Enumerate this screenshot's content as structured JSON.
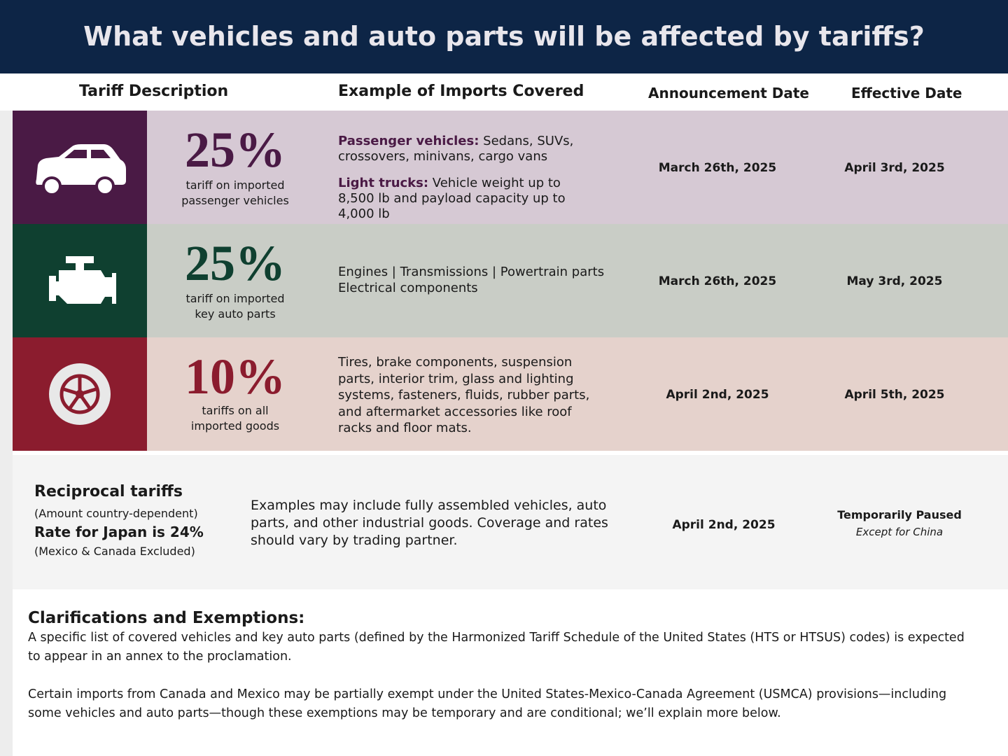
{
  "header": {
    "title": "What vehicles and auto parts will be affected by tariffs?"
  },
  "columns": [
    "Tariff Description",
    "Example of Imports Covered",
    "Announcement Date",
    "Effective Date"
  ],
  "rows": [
    {
      "rate": "25%",
      "caption": [
        "tariff on imported",
        "passenger vehicles"
      ],
      "examples": [
        {
          "label": "Passenger vehicles:",
          "text": "Sedans, SUVs, crossovers, minivans, cargo vans"
        },
        {
          "label": "Light trucks:",
          "text": "Vehicle weight up to 8,500 lb and payload capacity up to 4,000 lb"
        }
      ],
      "announcement": "March 26th, 2025",
      "effective": "April 3rd, 2025"
    },
    {
      "rate": "25%",
      "caption": [
        "tariff on imported",
        "key auto parts"
      ],
      "examples": [
        "Engines | Transmissions | Powertrain parts",
        "Electrical components"
      ],
      "announcement": "March 26th, 2025",
      "effective": "May 3rd, 2025"
    },
    {
      "rate": "10%",
      "caption": [
        "tariffs on all",
        "imported goods"
      ],
      "examples": [
        "Tires, brake components, suspension parts, interior trim, glass and lighting systems, fasteners, fluids, rubber parts, and aftermarket accessories like roof racks and floor mats."
      ],
      "announcement": "April 2nd, 2025",
      "effective": "April 5th, 2025"
    }
  ],
  "reciprocal": {
    "title": "Reciprocal tariffs",
    "note": "(Amount country-dependent)",
    "rate": "Rate for Japan is 24%",
    "exclusion": "(Mexico & Canada Excluded)",
    "description": "Examples may include fully assembled vehicles, auto parts, and other industrial goods. Coverage and rates should vary by trading partner.",
    "announcement": "April 2nd, 2025",
    "effective": "Temporarily Paused",
    "effective_note": "Except for China"
  },
  "clarifications": {
    "title": "Clarifications and Exemptions:",
    "paragraphs": [
      "A specific list of covered vehicles and key auto parts (defined by the Harmonized Tariff Schedule of the United States (HTS or HTSUS) codes) is expected to appear in an annex to the proclamation.",
      "Certain imports from Canada and Mexico may be partially exempt under the United States-Mexico-Canada Agreement (USMCA) provisions—including some vehicles and auto parts—though these exemptions may be temporary and are conditional; we’ll explain more below."
    ]
  }
}
